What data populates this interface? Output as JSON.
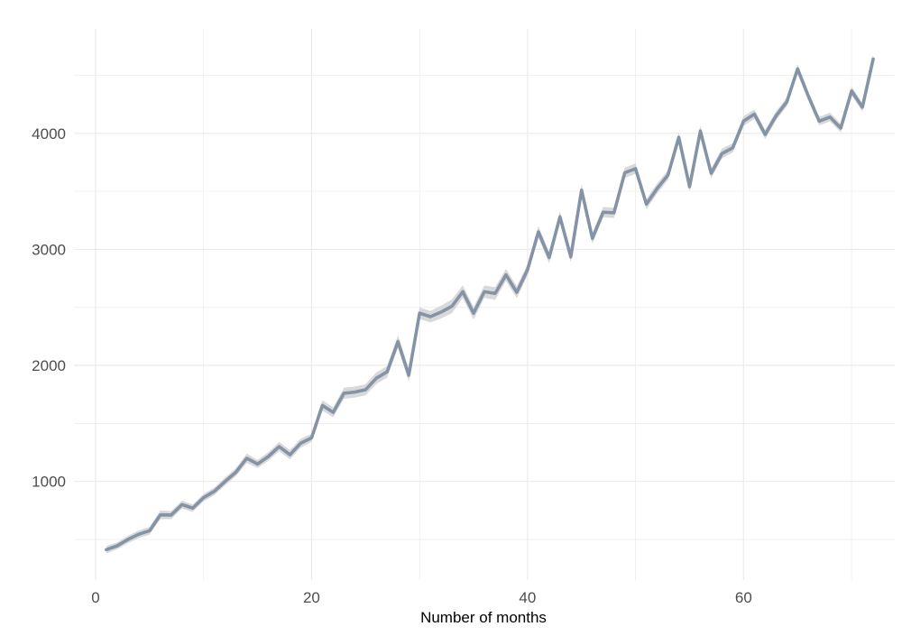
{
  "chart_data": {
    "type": "line",
    "title": "",
    "xlabel": "Number of months",
    "ylabel": "",
    "xlim": [
      -2,
      74
    ],
    "ylim": [
      150,
      4900
    ],
    "grid": true,
    "legend": "none",
    "x_ticks": [
      0,
      20,
      40,
      60
    ],
    "y_ticks": [
      1000,
      2000,
      3000,
      4000
    ],
    "x_tick_labels": [
      "0",
      "20",
      "40",
      "60"
    ],
    "y_tick_labels": [
      "1000",
      "2000",
      "3000",
      "4000"
    ],
    "colors": {
      "line": "#8593a7",
      "band": "#d9d9d9",
      "grid": "#ebebeb"
    },
    "series": [
      {
        "x": [
          1,
          2,
          3,
          4,
          5,
          6,
          7,
          8,
          9,
          10,
          11,
          12,
          13,
          14,
          15,
          16,
          17,
          18,
          19,
          20,
          21,
          22,
          23,
          24,
          25,
          26,
          27,
          28,
          29,
          30,
          31,
          32,
          33,
          34,
          35,
          36,
          37,
          38,
          39,
          40,
          41,
          42,
          43,
          44,
          45,
          46,
          47,
          48,
          49,
          50,
          51,
          52,
          53,
          54,
          55,
          56,
          57,
          58,
          59,
          60,
          61,
          62,
          63,
          64,
          65,
          66,
          67,
          68,
          69,
          70,
          71,
          72
        ],
        "y": [
          412,
          445,
          500,
          545,
          575,
          712,
          710,
          800,
          770,
          860,
          915,
          1000,
          1080,
          1200,
          1150,
          1215,
          1300,
          1230,
          1330,
          1375,
          1655,
          1595,
          1760,
          1770,
          1790,
          1890,
          1945,
          2205,
          1915,
          2450,
          2420,
          2460,
          2510,
          2635,
          2450,
          2635,
          2620,
          2780,
          2630,
          2825,
          3150,
          2930,
          3280,
          2935,
          3510,
          3095,
          3320,
          3315,
          3660,
          3695,
          3390,
          3525,
          3640,
          3965,
          3540,
          4020,
          3655,
          3825,
          3875,
          4105,
          4165,
          3990,
          4150,
          4270,
          4555,
          4320,
          4105,
          4140,
          4045,
          4365,
          4225,
          4640
        ],
        "lower": [
          380,
          415,
          468,
          512,
          542,
          675,
          675,
          765,
          738,
          828,
          882,
          965,
          1045,
          1160,
          1115,
          1178,
          1260,
          1190,
          1290,
          1340,
          1610,
          1552,
          1712,
          1722,
          1742,
          1840,
          1895,
          2150,
          1860,
          2400,
          2370,
          2405,
          2450,
          2580,
          2395,
          2582,
          2565,
          2728,
          2578,
          2775,
          3100,
          2880,
          3230,
          2888,
          3460,
          3050,
          3275,
          3270,
          3615,
          3650,
          3345,
          3480,
          3598,
          3920,
          3498,
          3975,
          3612,
          3782,
          3835,
          4062,
          4125,
          3950,
          4110,
          4230,
          4515,
          4282,
          4068,
          4102,
          4008,
          4325,
          4188,
          4600
        ],
        "upper": [
          444,
          475,
          532,
          578,
          608,
          750,
          745,
          835,
          802,
          892,
          948,
          1035,
          1115,
          1240,
          1185,
          1252,
          1340,
          1270,
          1370,
          1410,
          1700,
          1638,
          1808,
          1818,
          1838,
          1940,
          1995,
          2260,
          1970,
          2500,
          2470,
          2515,
          2570,
          2690,
          2505,
          2688,
          2675,
          2832,
          2682,
          2875,
          3200,
          2980,
          3330,
          2982,
          3560,
          3140,
          3365,
          3360,
          3705,
          3740,
          3435,
          3570,
          3682,
          4010,
          3582,
          4065,
          3698,
          3868,
          3915,
          4148,
          4205,
          4030,
          4190,
          4310,
          4595,
          4358,
          4142,
          4178,
          4082,
          4405,
          4262,
          4680
        ]
      }
    ]
  }
}
